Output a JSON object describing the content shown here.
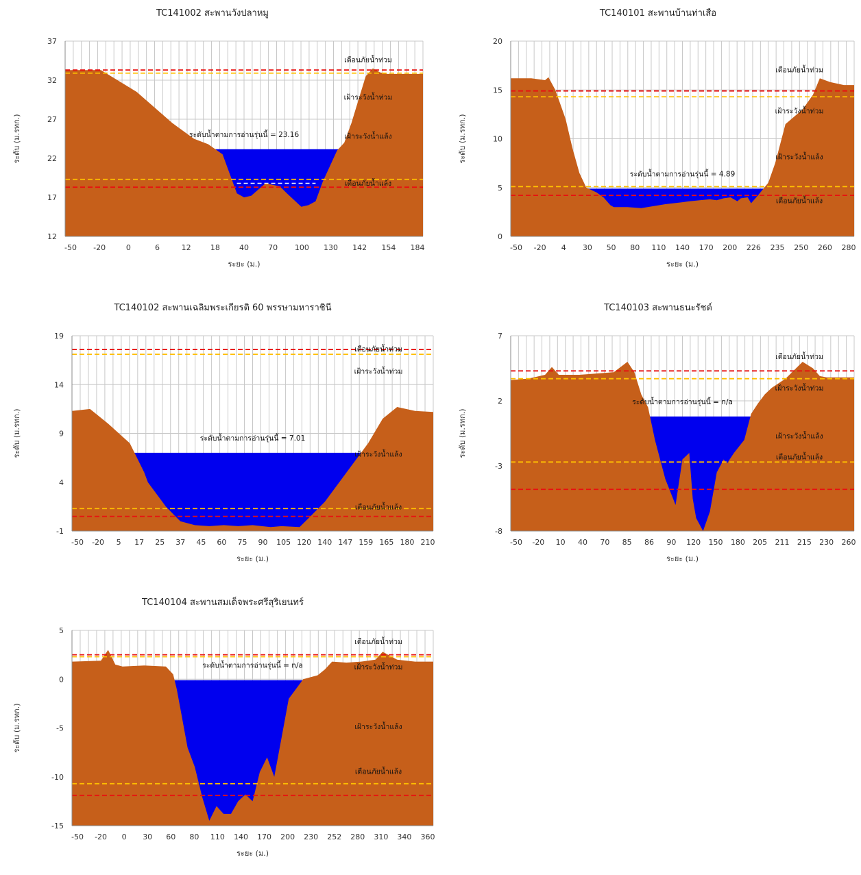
{
  "colors": {
    "ground": "#c65f1a",
    "water": "#0000ee",
    "gridline": "#c8c8c8",
    "dash_red": "#e81010",
    "dash_yellow": "#ffc000",
    "dash_white": "#ffffff"
  },
  "chart_data": [
    {
      "type": "area",
      "title": "TC141002 สะพานวังปลาหมู",
      "ylabel": "ระดับ (ม.รทก.)",
      "xlabel": "ระยะ (ม.)",
      "ylim": [
        12,
        37
      ],
      "yticks": [
        "12",
        "17",
        "22",
        "27",
        "32",
        "37"
      ],
      "x_ticks": [
        "-50",
        "-20",
        "0",
        "6",
        "12",
        "18",
        "40",
        "70",
        "100",
        "130",
        "142",
        "154",
        "184"
      ],
      "water_label": "ระดับน้ำตามการอ่านรุ่นนี้ = 23.16",
      "water_level": 23.16,
      "levels": [
        {
          "name": "เตือนภัยน้ำท่วม",
          "value": 33.3,
          "color": "dash_red"
        },
        {
          "name": "เฝ้าระวังน้ำท่วม",
          "value": 32.9,
          "color": "dash_yellow"
        },
        {
          "name": "เฝ้าระวังน้ำแล้ง",
          "value": 19.3,
          "color": "dash_yellow"
        },
        {
          "name": "เตือนภัยน้ำแล้ง",
          "value": 18.3,
          "color": "dash_red"
        }
      ],
      "label_y": [
        34.3,
        29.5,
        24.5,
        18.5
      ],
      "white_line": 18.8,
      "profile": {
        "x": [
          0,
          0.1,
          0.2,
          0.3,
          0.36,
          0.4,
          0.44,
          0.48,
          0.5,
          0.52,
          0.56,
          0.6,
          0.62,
          0.66,
          0.68,
          0.7,
          0.72,
          0.74,
          0.76,
          0.78,
          0.8,
          0.82,
          0.84,
          0.86,
          0.88,
          0.9,
          0.92,
          1
        ],
        "y": [
          33.3,
          33.3,
          30.5,
          26.5,
          24.5,
          23.8,
          22.5,
          17.5,
          17.0,
          17.2,
          18.8,
          18.4,
          17.5,
          15.8,
          16.0,
          16.5,
          19.0,
          21.0,
          23.0,
          24.0,
          26.5,
          29.5,
          32.5,
          33.5,
          33.0,
          32.8,
          32.8,
          32.8
        ]
      }
    },
    {
      "type": "area",
      "title": "TC140101 สะพานบ้านท่าเสือ",
      "ylabel": "ระดับ (ม.รทก.)",
      "xlabel": "ระยะ (ม.)",
      "ylim": [
        0,
        20
      ],
      "yticks": [
        "0",
        "5",
        "10",
        "15",
        "20"
      ],
      "x_ticks": [
        "-50",
        "-20",
        "4",
        "30",
        "50",
        "80",
        "110",
        "140",
        "170",
        "200",
        "226",
        "235",
        "250",
        "260",
        "280"
      ],
      "water_label": "ระดับน้ำตามการอ่านรุ่นนี้ = 4.89",
      "water_level": 4.89,
      "levels": [
        {
          "name": "เตือนภัยน้ำท่วม",
          "value": 14.9,
          "color": "dash_red"
        },
        {
          "name": "เฝ้าระวังน้ำท่วม",
          "value": 14.3,
          "color": "dash_yellow"
        },
        {
          "name": "เฝ้าระวังน้ำแล้ง",
          "value": 5.1,
          "color": "dash_yellow"
        },
        {
          "name": "เตือนภัยน้ำแล้ง",
          "value": 4.2,
          "color": "dash_red"
        }
      ],
      "label_y": [
        16.8,
        12.6,
        7.9,
        3.4
      ],
      "profile": {
        "x": [
          0,
          0.06,
          0.1,
          0.11,
          0.13,
          0.16,
          0.18,
          0.2,
          0.22,
          0.25,
          0.27,
          0.29,
          0.3,
          0.34,
          0.38,
          0.45,
          0.5,
          0.52,
          0.55,
          0.58,
          0.6,
          0.62,
          0.64,
          0.66,
          0.67,
          0.69,
          0.7,
          0.72,
          0.75,
          0.77,
          0.8,
          0.85,
          0.88,
          0.9,
          0.93,
          0.97,
          1
        ],
        "y": [
          16.2,
          16.2,
          16.0,
          16.3,
          15.0,
          12.0,
          9.0,
          6.5,
          5.0,
          4.5,
          4.0,
          3.2,
          3.0,
          3.0,
          2.9,
          3.3,
          3.5,
          3.6,
          3.7,
          3.8,
          3.7,
          3.9,
          4.0,
          3.6,
          3.9,
          4.0,
          3.4,
          4.2,
          5.5,
          7.5,
          11.5,
          13.0,
          14.5,
          16.2,
          15.8,
          15.5,
          15.5
        ]
      }
    },
    {
      "type": "area",
      "title": "TC140102 สะพานเฉลิมพระเกียรติ 60 พรรษามหาราชินี",
      "ylabel": "ระดับ (ม.รทก.)",
      "xlabel": "ระยะ (ม.)",
      "ylim": [
        -1,
        19
      ],
      "yticks": [
        "-1",
        "4",
        "9",
        "14",
        "19"
      ],
      "x_ticks": [
        "-50",
        "-20",
        "5",
        "17",
        "25",
        "37",
        "45",
        "60",
        "75",
        "90",
        "105",
        "120",
        "140",
        "147",
        "159",
        "165",
        "180",
        "210"
      ],
      "water_label": "ระดับน้ำตามการอ่านรุ่นนี้ = 7.01",
      "water_level": 7.01,
      "levels": [
        {
          "name": "เตือนภัยน้ำท่วม",
          "value": 17.6,
          "color": "dash_red"
        },
        {
          "name": "เฝ้าระวังน้ำท่วม",
          "value": 17.1,
          "color": "dash_yellow"
        },
        {
          "name": "เฝ้าระวังน้ำแล้ง",
          "value": 1.3,
          "color": "dash_yellow"
        },
        {
          "name": "เตือนภัยน้ำแล้ง",
          "value": 0.5,
          "color": "dash_red"
        }
      ],
      "label_y": [
        17.4,
        15.1,
        6.6,
        1.2
      ],
      "profile": {
        "x": [
          0,
          0.05,
          0.1,
          0.16,
          0.2,
          0.21,
          0.22,
          0.24,
          0.26,
          0.3,
          0.34,
          0.38,
          0.42,
          0.46,
          0.5,
          0.55,
          0.58,
          0.63,
          0.66,
          0.7,
          0.76,
          0.82,
          0.86,
          0.9,
          0.95,
          1
        ],
        "y": [
          11.3,
          11.5,
          10.0,
          8.0,
          5.0,
          4.0,
          3.5,
          2.5,
          1.5,
          0.0,
          -0.4,
          -0.5,
          -0.4,
          -0.5,
          -0.4,
          -0.6,
          -0.5,
          -0.6,
          0.5,
          2.0,
          5.0,
          8.0,
          10.5,
          11.7,
          11.3,
          11.2
        ]
      }
    },
    {
      "type": "area",
      "title": "TC140103 สะพานธนะรัชต์",
      "ylabel": "ระดับ (ม.รทก.)",
      "xlabel": "ระยะ (ม.)",
      "ylim": [
        -8,
        7
      ],
      "yticks": [
        "-8",
        "-3",
        "2",
        "7"
      ],
      "x_ticks": [
        "-50",
        "-20",
        "10",
        "40",
        "70",
        "85",
        "86",
        "90",
        "120",
        "150",
        "180",
        "205",
        "211",
        "215",
        "230",
        "260"
      ],
      "water_label": "ระดับน้ำตามการอ่านรุ่นนี้ = n/a",
      "water_level": 0.8,
      "levels": [
        {
          "name": "เตือนภัยน้ำท่วม",
          "value": 4.3,
          "color": "dash_red"
        },
        {
          "name": "เฝ้าระวังน้ำท่วม",
          "value": 3.7,
          "color": "dash_yellow"
        },
        {
          "name": "เฝ้าระวังน้ำแล้ง",
          "value": -2.7,
          "color": "dash_yellow"
        },
        {
          "name": "เตือนภัยน้ำแล้ง",
          "value": -4.8,
          "color": "dash_red"
        }
      ],
      "label_y": [
        5.2,
        2.8,
        -0.9,
        -2.5
      ],
      "profile": {
        "x": [
          0,
          0.05,
          0.1,
          0.12,
          0.14,
          0.2,
          0.25,
          0.3,
          0.34,
          0.36,
          0.38,
          0.4,
          0.42,
          0.45,
          0.48,
          0.5,
          0.52,
          0.53,
          0.54,
          0.56,
          0.58,
          0.6,
          0.62,
          0.63,
          0.65,
          0.68,
          0.7,
          0.72,
          0.74,
          0.76,
          0.8,
          0.85,
          0.88,
          0.9,
          0.92,
          1
        ],
        "y": [
          3.6,
          3.7,
          4.0,
          4.6,
          4.0,
          4.0,
          4.1,
          4.2,
          5.0,
          4.2,
          2.5,
          1.5,
          -1.0,
          -4.0,
          -6.0,
          -2.5,
          -2.0,
          -5.5,
          -7.0,
          -8.0,
          -6.5,
          -3.5,
          -2.5,
          -2.8,
          -2.0,
          -1.0,
          1.0,
          1.8,
          2.5,
          3.0,
          3.7,
          5.0,
          4.5,
          3.9,
          3.8,
          3.8
        ]
      }
    },
    {
      "type": "area",
      "title": "TC140104 สะพานสมเด็จพระศรีสุริเยนทร์",
      "ylabel": "ระดับ (ม.รทก.)",
      "xlabel": "ระยะ (ม.)",
      "ylim": [
        -15,
        5
      ],
      "yticks": [
        "-15",
        "-10",
        "-5",
        "0",
        "5"
      ],
      "x_ticks": [
        "-50",
        "-20",
        "0",
        "30",
        "60",
        "80",
        "110",
        "140",
        "170",
        "200",
        "230",
        "252",
        "280",
        "310",
        "340",
        "360"
      ],
      "water_label": "ระดับน้ำตามการอ่านรุ่นนี้ = n/a",
      "water_level": -0.1,
      "levels": [
        {
          "name": "เตือนภัยน้ำท่วม",
          "value": 2.5,
          "color": "dash_red"
        },
        {
          "name": "เฝ้าระวังน้ำท่วม",
          "value": 2.3,
          "color": "dash_yellow"
        },
        {
          "name": "เฝ้าระวังน้ำแล้ง",
          "value": -10.7,
          "color": "dash_yellow"
        },
        {
          "name": "เตือนภัยน้ำแล้ง",
          "value": -11.9,
          "color": "dash_red"
        }
      ],
      "label_y": [
        3.6,
        1.0,
        -5.1,
        -9.7
      ],
      "profile": {
        "x": [
          0,
          0.08,
          0.1,
          0.12,
          0.14,
          0.2,
          0.26,
          0.28,
          0.29,
          0.3,
          0.32,
          0.34,
          0.36,
          0.38,
          0.4,
          0.42,
          0.44,
          0.46,
          0.48,
          0.5,
          0.52,
          0.54,
          0.56,
          0.58,
          0.6,
          0.64,
          0.68,
          0.7,
          0.72,
          0.76,
          0.8,
          0.84,
          0.86,
          0.9,
          0.95,
          1
        ],
        "y": [
          1.8,
          1.9,
          3.0,
          1.5,
          1.3,
          1.4,
          1.3,
          0.5,
          -1.0,
          -3.0,
          -7.0,
          -9.0,
          -12.0,
          -14.5,
          -13.0,
          -13.8,
          -13.8,
          -12.5,
          -11.8,
          -12.5,
          -9.5,
          -8.0,
          -10.0,
          -6.0,
          -2.0,
          0.0,
          0.4,
          1.0,
          1.8,
          1.7,
          1.8,
          2.0,
          2.8,
          2.0,
          1.8,
          1.8
        ]
      }
    }
  ]
}
